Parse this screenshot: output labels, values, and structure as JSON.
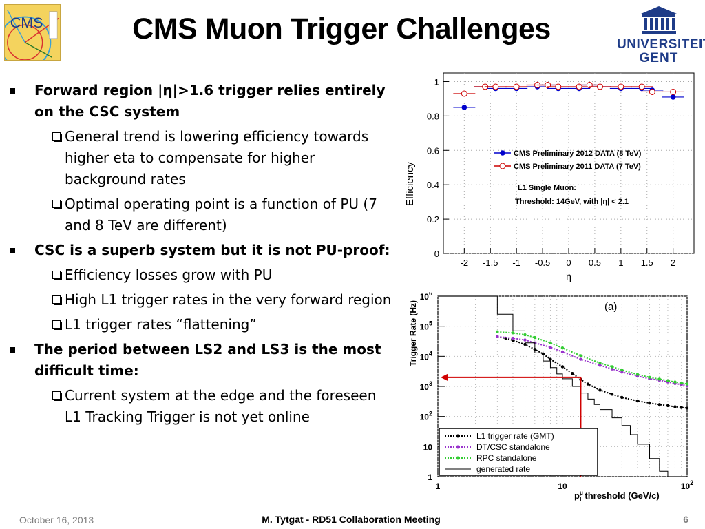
{
  "header": {
    "title": "CMS Muon Trigger Challenges",
    "cms_logo_text": "CMS",
    "university_line1": "UNIVERSITEIT",
    "university_line2": "GENT",
    "cms_logo_icon": "cms-detector-logo",
    "university_logo_icon": "classical-building-icon",
    "brand_color": "#1f3c88"
  },
  "bullets": [
    {
      "text": "Forward region |η|>1.6 trigger relies entirely on the CSC system",
      "sub": [
        "General trend is lowering efficiency towards higher eta to compensate for higher background rates",
        "Optimal operating point is a function of PU (7 and 8 TeV are different)"
      ]
    },
    {
      "text": "CSC is a superb system but it is not PU-proof:",
      "sub": [
        "Efficiency losses grow with PU",
        "High L1 trigger rates in the very forward region",
        "L1 trigger rates “flattening”"
      ]
    },
    {
      "text": "The period between LS2 and LS3 is the most difficult time:",
      "sub": [
        "Current system at the edge and the foreseen L1 Tracking Trigger is not yet online"
      ]
    }
  ],
  "footer": {
    "date": "October 16, 2013",
    "center": "M. Tytgat - RD51 Collaboration Meeting",
    "page": "6"
  },
  "chart_data": [
    {
      "type": "scatter",
      "xlabel": "η",
      "ylabel": "Efficiency",
      "xlim": [
        -2.4,
        2.4
      ],
      "ylim": [
        0,
        1.05
      ],
      "xticks": [
        "-2",
        "-1.5",
        "-1",
        "-0.5",
        "0",
        "0.5",
        "1",
        "1.5",
        "2"
      ],
      "yticks": [
        "0",
        "0.2",
        "0.4",
        "0.6",
        "0.8",
        "1"
      ],
      "grid": true,
      "legend": "right",
      "annotation_lines": [
        "L1 Single Muon:",
        "Threshold: 14GeV, with |η| < 2.1"
      ],
      "series": [
        {
          "name": "CMS Preliminary 2012 DATA (8 TeV)",
          "color": "#0000cc",
          "marker": "filled-circle",
          "x": [
            -2.0,
            -1.6,
            -1.4,
            -1.0,
            -0.6,
            -0.4,
            -0.2,
            0.2,
            0.4,
            0.6,
            1.0,
            1.4,
            1.6,
            2.0
          ],
          "y": [
            0.85,
            0.97,
            0.96,
            0.96,
            0.97,
            0.98,
            0.96,
            0.96,
            0.98,
            0.97,
            0.96,
            0.96,
            0.95,
            0.91
          ]
        },
        {
          "name": "CMS Preliminary 2011 DATA (7 TeV)",
          "color": "#cc0000",
          "marker": "open-circle",
          "x": [
            -2.0,
            -1.6,
            -1.4,
            -1.0,
            -0.6,
            -0.4,
            -0.2,
            0.2,
            0.4,
            0.6,
            1.0,
            1.4,
            1.6,
            2.0
          ],
          "y": [
            0.93,
            0.97,
            0.97,
            0.97,
            0.98,
            0.98,
            0.97,
            0.97,
            0.98,
            0.97,
            0.97,
            0.97,
            0.94,
            0.94
          ]
        }
      ]
    },
    {
      "type": "line",
      "panel_label": "(a)",
      "xlabel": "p",
      "xlabel_super": "μ",
      "xlabel_sub": "T",
      "xlabel_rest": " threshold (GeV/c)",
      "ylabel": "Trigger Rate (Hz)",
      "x_log": true,
      "y_log": true,
      "xlim": [
        1,
        100
      ],
      "ylim": [
        1,
        1000000
      ],
      "xticks": [
        {
          "v": 1,
          "base": "1",
          "exp": ""
        },
        {
          "v": 10,
          "base": "10",
          "exp": ""
        },
        {
          "v": 100,
          "base": "10",
          "exp": "2"
        }
      ],
      "yticks": [
        {
          "v": 1,
          "base": "1",
          "exp": ""
        },
        {
          "v": 10,
          "base": "10",
          "exp": ""
        },
        {
          "v": 100,
          "base": "10",
          "exp": "2"
        },
        {
          "v": 1000,
          "base": "10",
          "exp": "3"
        },
        {
          "v": 10000,
          "base": "10",
          "exp": "4"
        },
        {
          "v": 100000,
          "base": "10",
          "exp": "5"
        },
        {
          "v": 1000000,
          "base": "10",
          "exp": "6"
        }
      ],
      "grid": true,
      "legend": "bottom-left",
      "marker_arrow": {
        "x": 14,
        "y": 2000,
        "color": "#d00000"
      },
      "series": [
        {
          "name": "L1 trigger rate (GMT)",
          "color": "#000000",
          "style": "dots",
          "x": [
            3,
            3.5,
            4,
            5,
            6,
            7,
            8,
            10,
            12,
            14,
            16,
            20,
            25,
            30,
            40,
            50,
            60,
            70,
            80,
            90,
            100
          ],
          "y": [
            45000,
            40000,
            34000,
            25000,
            17000,
            12000,
            8000,
            4500,
            2700,
            1700,
            1200,
            750,
            550,
            430,
            330,
            280,
            250,
            230,
            210,
            200,
            190
          ]
        },
        {
          "name": "DT/CSC standalone",
          "color": "#9933cc",
          "style": "dots",
          "x": [
            3,
            4,
            5,
            6,
            8,
            10,
            14,
            20,
            25,
            30,
            40,
            50,
            60,
            70,
            80,
            90,
            100
          ],
          "y": [
            45000,
            40000,
            35000,
            28000,
            20000,
            14000,
            8000,
            5000,
            3800,
            3000,
            2200,
            1800,
            1600,
            1400,
            1250,
            1150,
            1050
          ]
        },
        {
          "name": "RPC standalone",
          "color": "#33cc33",
          "style": "dots",
          "x": [
            3,
            4,
            5,
            6,
            8,
            10,
            14,
            20,
            25,
            30,
            40,
            50,
            60,
            70,
            80,
            90,
            100
          ],
          "y": [
            65000,
            60000,
            52000,
            42000,
            28000,
            19000,
            10500,
            6000,
            4500,
            3500,
            2500,
            2000,
            1750,
            1550,
            1400,
            1300,
            1200
          ]
        },
        {
          "name": "generated rate",
          "color": "#000000",
          "style": "step",
          "x": [
            1,
            2,
            3,
            4,
            5,
            6,
            7,
            8,
            9,
            10,
            12,
            14,
            16,
            18,
            20,
            25,
            30,
            35,
            40,
            50,
            60,
            70,
            100
          ],
          "y": [
            1000000,
            1000000,
            250000,
            70000,
            28000,
            13000,
            7000,
            4200,
            2600,
            1800,
            1000,
            600,
            380,
            250,
            170,
            90,
            50,
            25,
            12,
            4,
            1.5,
            1,
            1
          ]
        }
      ]
    }
  ]
}
